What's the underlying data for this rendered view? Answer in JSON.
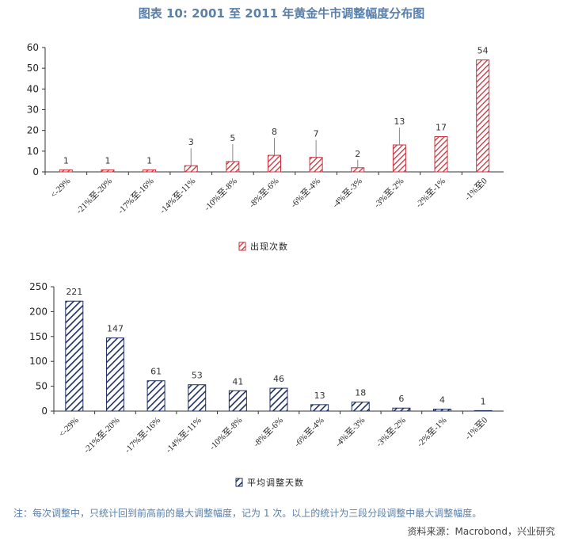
{
  "title": "图表 10: 2001 至 2011 年黄金牛市调整幅度分布图",
  "note": "注：每次调整中，只统计回到前高前的最大调整幅度，记为 1 次。以上的统计为三段分段调整中最大调整幅度。",
  "source": "资料来源：Macrobond，兴业研究",
  "colors": {
    "red": "#c8323c",
    "navy": "#1f2f5e",
    "title": "#5a7fa8"
  },
  "chart_data": [
    {
      "type": "bar",
      "categories": [
        "<-29%",
        "-21%至-20%",
        "-17%至-16%",
        "-14%至-11%",
        "-10%至-8%",
        "-8%至-6%",
        "-6%至-4%",
        "-4%至-3%",
        "-3%至-2%",
        "-2%至-1%",
        "-1%至0"
      ],
      "series": [
        {
          "name": "出现次数",
          "values": [
            1,
            1,
            1,
            3,
            5,
            8,
            7,
            2,
            13,
            17,
            54
          ]
        }
      ],
      "ylim": [
        0,
        60
      ],
      "yticks": [
        0,
        10,
        20,
        30,
        40,
        50,
        60
      ],
      "legend": "bottom-center",
      "pattern": "red-diagonal-hatch"
    },
    {
      "type": "bar",
      "categories": [
        "<-29%",
        "-21%至-20%",
        "-17%至-16%",
        "-14%至-11%",
        "-10%至-8%",
        "-8%至-6%",
        "-6%至-4%",
        "-4%至-3%",
        "-3%至-2%",
        "-2%至-1%",
        "-1%至0"
      ],
      "series": [
        {
          "name": "平均调整天数",
          "values": [
            221,
            147,
            61,
            53,
            41,
            46,
            13,
            18,
            6,
            4,
            1
          ]
        }
      ],
      "ylim": [
        0,
        250
      ],
      "yticks": [
        0,
        50,
        100,
        150,
        200,
        250
      ],
      "legend": "bottom-center",
      "pattern": "navy-diagonal-hatch"
    }
  ]
}
